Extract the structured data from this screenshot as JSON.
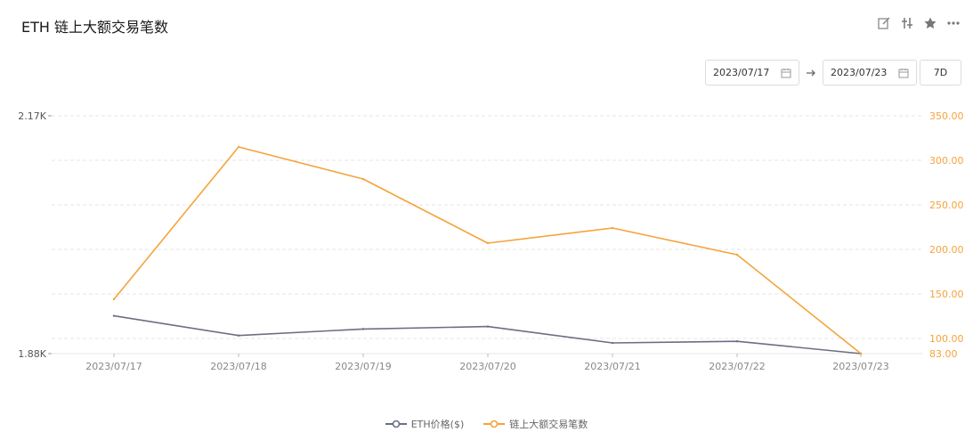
{
  "header": {
    "title": "ETH 链上大额交易笔数"
  },
  "toolbar": {
    "icons": [
      "edit-icon",
      "sliders-icon",
      "star-icon",
      "more-icon"
    ]
  },
  "date_range": {
    "start": "2023/07/17",
    "end": "2023/07/23",
    "period": "7D"
  },
  "colors": {
    "eth_price": "#6b6f82",
    "tx_count": "#f5a33b",
    "left_axis": "#555555",
    "right_axis": "#f5a33b",
    "grid": "#e6e6e6"
  },
  "chart_data": {
    "type": "line",
    "x": [
      "2023/07/17",
      "2023/07/18",
      "2023/07/19",
      "2023/07/20",
      "2023/07/21",
      "2023/07/22",
      "2023/07/23"
    ],
    "series": [
      {
        "name": "ETH价格($)",
        "axis": "left",
        "values": [
          1.926,
          1.902,
          1.91,
          1.913,
          1.893,
          1.895,
          1.88
        ]
      },
      {
        "name": "链上大额交易笔数",
        "axis": "right",
        "values": [
          144,
          315,
          279,
          207,
          224,
          194,
          83
        ]
      }
    ],
    "yaxis_left": {
      "ticks": [
        "2.17K",
        "1.88K"
      ],
      "min": 1.88,
      "max": 2.17
    },
    "yaxis_right": {
      "ticks": [
        "350.00",
        "300.00",
        "250.00",
        "200.00",
        "150.00",
        "100.00",
        "83.00"
      ],
      "min": 83,
      "max": 350
    },
    "grid": true,
    "legend_position": "bottom-center"
  }
}
